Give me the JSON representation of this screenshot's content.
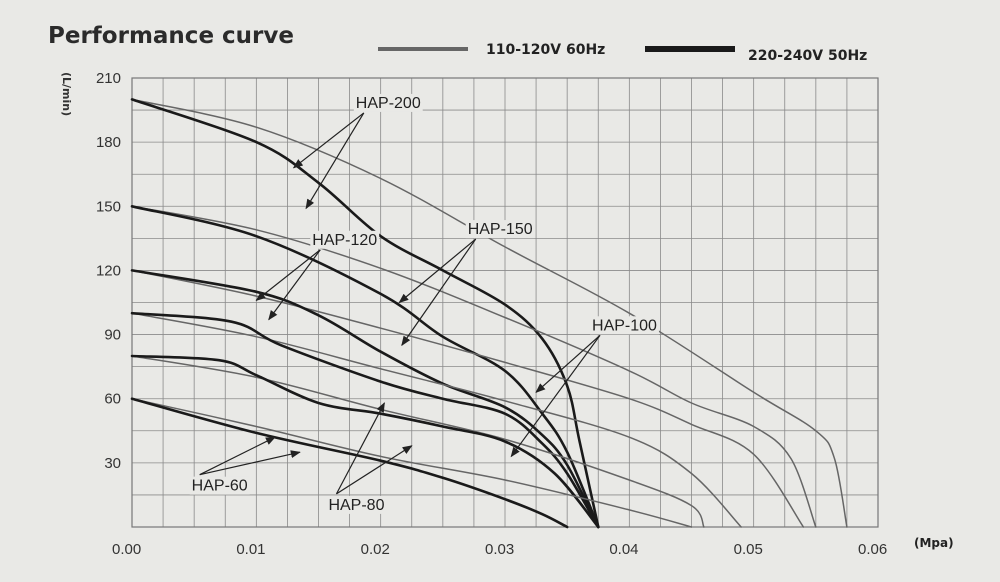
{
  "chart_data": {
    "type": "line",
    "title": "Performance curve",
    "ylabel": "(L/min)",
    "xunit": "(Mpa)",
    "xlim": [
      0,
      0.06
    ],
    "ylim": [
      0,
      210
    ],
    "x_ticks": [
      "0.00",
      "0.01",
      "0.02",
      "0.03",
      "0.04",
      "0.05",
      "0.06"
    ],
    "y_ticks": [
      "30",
      "60",
      "90",
      "120",
      "150",
      "180",
      "210"
    ],
    "x_tick_values": [
      0,
      0.01,
      0.02,
      0.03,
      0.04,
      0.05,
      0.06
    ],
    "y_tick_values": [
      30,
      60,
      90,
      120,
      150,
      180,
      210
    ],
    "grid": true,
    "legend": [
      {
        "label": "110-120V 60Hz",
        "style": "thin"
      },
      {
        "label": "220-240V 50Hz",
        "style": "thick"
      }
    ],
    "colors": {
      "thin": "#666666",
      "thick": "#1a1a1a"
    },
    "series": [
      {
        "name": "HAP-200",
        "voltage": "110-120V 60Hz",
        "points": [
          [
            0,
            200
          ],
          [
            0.01,
            187
          ],
          [
            0.02,
            163
          ],
          [
            0.03,
            131
          ],
          [
            0.04,
            100
          ],
          [
            0.05,
            63
          ],
          [
            0.055,
            45
          ],
          [
            0.0565,
            32
          ],
          [
            0.0575,
            0
          ]
        ]
      },
      {
        "name": "HAP-200",
        "voltage": "220-240V 50Hz",
        "points": [
          [
            0,
            200
          ],
          [
            0.01,
            180
          ],
          [
            0.015,
            161
          ],
          [
            0.02,
            136
          ],
          [
            0.025,
            120
          ],
          [
            0.03,
            104
          ],
          [
            0.033,
            88
          ],
          [
            0.035,
            66
          ],
          [
            0.036,
            40
          ],
          [
            0.0375,
            0
          ]
        ]
      },
      {
        "name": "HAP-150",
        "voltage": "110-120V 60Hz",
        "points": [
          [
            0,
            150
          ],
          [
            0.01,
            139
          ],
          [
            0.02,
            121
          ],
          [
            0.03,
            98
          ],
          [
            0.04,
            73
          ],
          [
            0.045,
            58
          ],
          [
            0.05,
            47
          ],
          [
            0.053,
            32
          ],
          [
            0.055,
            0
          ]
        ]
      },
      {
        "name": "HAP-150",
        "voltage": "220-240V 50Hz",
        "points": [
          [
            0,
            150
          ],
          [
            0.01,
            136
          ],
          [
            0.02,
            109
          ],
          [
            0.025,
            89
          ],
          [
            0.03,
            73
          ],
          [
            0.033,
            53
          ],
          [
            0.035,
            35
          ],
          [
            0.0375,
            0
          ]
        ]
      },
      {
        "name": "HAP-120",
        "voltage": "110-120V 60Hz",
        "points": [
          [
            0,
            120
          ],
          [
            0.01,
            108
          ],
          [
            0.02,
            93
          ],
          [
            0.03,
            77
          ],
          [
            0.04,
            60
          ],
          [
            0.045,
            48
          ],
          [
            0.05,
            34
          ],
          [
            0.054,
            0
          ]
        ]
      },
      {
        "name": "HAP-120",
        "voltage": "220-240V 50Hz",
        "points": [
          [
            0,
            120
          ],
          [
            0.01,
            110
          ],
          [
            0.015,
            99
          ],
          [
            0.02,
            82
          ],
          [
            0.025,
            67
          ],
          [
            0.03,
            56
          ],
          [
            0.033,
            43
          ],
          [
            0.035,
            29
          ],
          [
            0.0375,
            0
          ]
        ]
      },
      {
        "name": "HAP-100",
        "voltage": "110-120V 60Hz",
        "points": [
          [
            0,
            100
          ],
          [
            0.01,
            89
          ],
          [
            0.02,
            74
          ],
          [
            0.03,
            59
          ],
          [
            0.04,
            42
          ],
          [
            0.045,
            25
          ],
          [
            0.049,
            0
          ]
        ]
      },
      {
        "name": "HAP-100",
        "voltage": "220-240V 50Hz",
        "points": [
          [
            0,
            100
          ],
          [
            0.008,
            96
          ],
          [
            0.012,
            85
          ],
          [
            0.02,
            68
          ],
          [
            0.025,
            60
          ],
          [
            0.03,
            53
          ],
          [
            0.033,
            39
          ],
          [
            0.035,
            25
          ],
          [
            0.0375,
            0
          ]
        ]
      },
      {
        "name": "HAP-80",
        "voltage": "110-120V 60Hz",
        "points": [
          [
            0,
            80
          ],
          [
            0.01,
            70
          ],
          [
            0.02,
            55
          ],
          [
            0.03,
            41
          ],
          [
            0.04,
            22
          ],
          [
            0.045,
            10
          ],
          [
            0.046,
            0
          ]
        ]
      },
      {
        "name": "HAP-80",
        "voltage": "220-240V 50Hz",
        "points": [
          [
            0,
            80
          ],
          [
            0.007,
            78
          ],
          [
            0.01,
            71
          ],
          [
            0.015,
            58
          ],
          [
            0.02,
            53
          ],
          [
            0.025,
            47
          ],
          [
            0.03,
            40
          ],
          [
            0.034,
            25
          ],
          [
            0.0375,
            0
          ]
        ]
      },
      {
        "name": "HAP-60",
        "voltage": "110-120V 60Hz",
        "points": [
          [
            0,
            60
          ],
          [
            0.01,
            47
          ],
          [
            0.02,
            33
          ],
          [
            0.03,
            22
          ],
          [
            0.04,
            8
          ],
          [
            0.045,
            0
          ]
        ]
      },
      {
        "name": "HAP-60",
        "voltage": "220-240V 50Hz",
        "points": [
          [
            0,
            60
          ],
          [
            0.01,
            44
          ],
          [
            0.02,
            31
          ],
          [
            0.025,
            23
          ],
          [
            0.03,
            13
          ],
          [
            0.033,
            6
          ],
          [
            0.035,
            0
          ]
        ]
      }
    ],
    "annotations": [
      {
        "label": "HAP-200",
        "text_at": [
          0.018,
          196
        ],
        "arrows_to": [
          [
            0.013,
            168
          ],
          [
            0.014,
            149
          ]
        ]
      },
      {
        "label": "HAP-150",
        "text_at": [
          0.027,
          137
        ],
        "arrows_to": [
          [
            0.0215,
            105
          ],
          [
            0.0217,
            85
          ]
        ]
      },
      {
        "label": "HAP-120",
        "text_at": [
          0.0145,
          132
        ],
        "arrows_to": [
          [
            0.01,
            106
          ],
          [
            0.011,
            97
          ]
        ]
      },
      {
        "label": "HAP-100",
        "text_at": [
          0.037,
          92
        ],
        "arrows_to": [
          [
            0.0325,
            63
          ],
          [
            0.0305,
            33
          ]
        ]
      },
      {
        "label": "HAP-80",
        "text_at": [
          0.0158,
          8
        ],
        "arrows_to": [
          [
            0.0203,
            58
          ],
          [
            0.0225,
            38
          ]
        ]
      },
      {
        "label": "HAP-60",
        "text_at": [
          0.0048,
          17
        ],
        "arrows_to": [
          [
            0.0115,
            42
          ],
          [
            0.0135,
            35
          ]
        ]
      }
    ]
  }
}
